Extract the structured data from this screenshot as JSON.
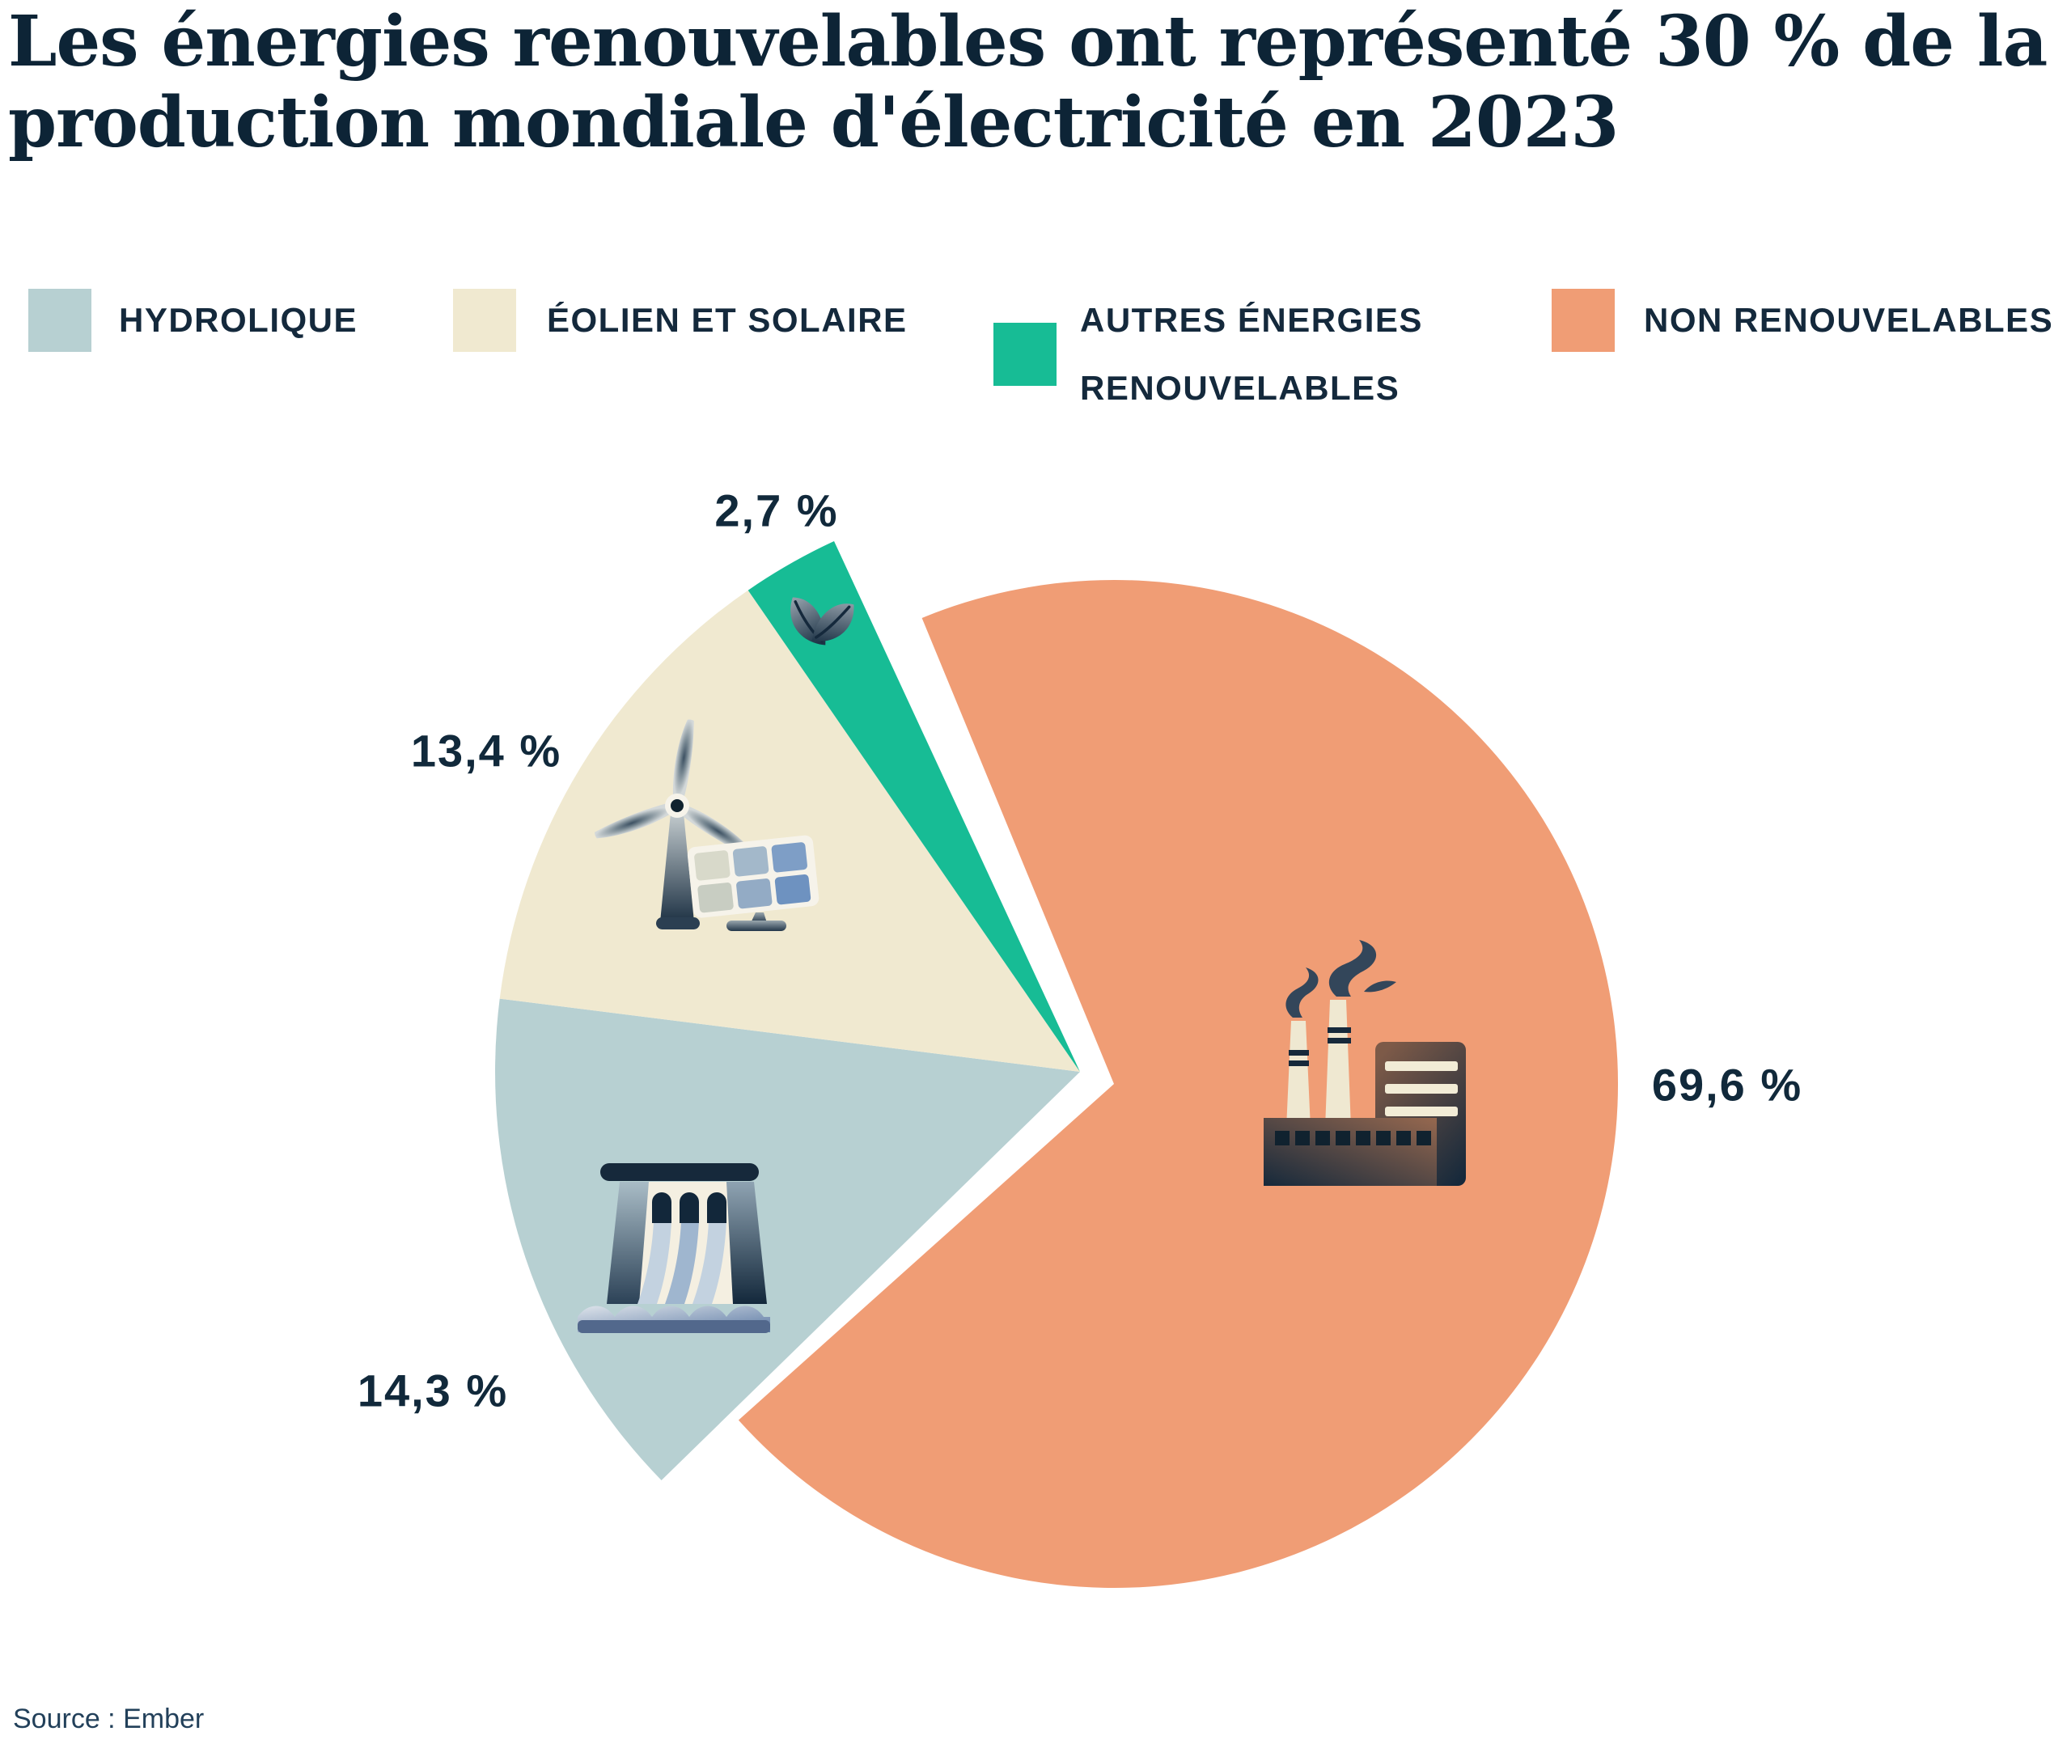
{
  "title_lines": [
    "Les énergies renouvelables ont représenté 30 % de la",
    "production mondiale d'électricité en 2023"
  ],
  "legend": {
    "items": [
      {
        "label": "HYDROLIQUE",
        "color": "#b7d0d2"
      },
      {
        "label": "ÉOLIEN ET SOLAIRE",
        "color": "#f0e9d0"
      },
      {
        "label": "AUTRES ÉNERGIES RENOUVELABLES",
        "color": "#17bc95"
      },
      {
        "label": "NON RENOUVELABLES",
        "color": "#f09d75"
      }
    ]
  },
  "chart_data": {
    "type": "pie",
    "title": "Les énergies renouvelables ont représenté 30 % de la production mondiale d'électricité en 2023",
    "unit": "%",
    "legend_position": "top",
    "exploded_slice": "Non renouvelables",
    "slices": [
      {
        "id": "hydrolique",
        "label": "Hydrolique",
        "value": 14.3,
        "display": "14,3 %",
        "color": "#b7d0d2",
        "icon": "hydro-dam-icon"
      },
      {
        "id": "eolien-solaire",
        "label": "Éolien et solaire",
        "value": 13.4,
        "display": "13,4 %",
        "color": "#f0e9d0",
        "icon": "wind-turbine-solar-panel-icon"
      },
      {
        "id": "autres-renouvelables",
        "label": "Autres énergies renouvelables",
        "value": 2.7,
        "display": "2,7 %",
        "color": "#17bc95",
        "icon": "leaf-icon"
      },
      {
        "id": "non-renouvelables",
        "label": "Non renouvelables",
        "value": 69.6,
        "display": "69,6 %",
        "color": "#f09d75",
        "icon": "factory-icon"
      }
    ]
  },
  "source": "Source : Ember"
}
